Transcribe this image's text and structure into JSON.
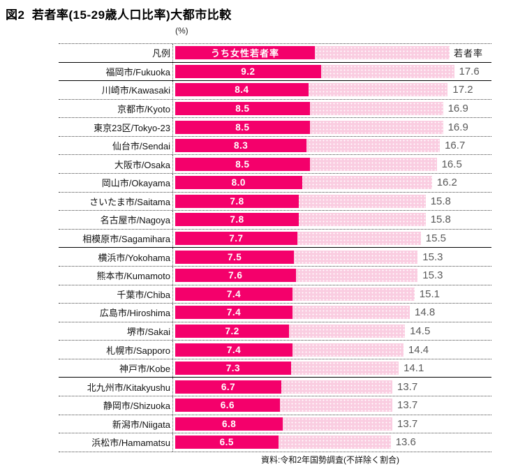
{
  "title": "図2  若者率(15-29歳人口比率)大都市比較",
  "unit_label": "(%)",
  "legend": {
    "row_label": "凡例",
    "female_series_label": "うち女性若者率",
    "total_series_label": "若者率"
  },
  "source": "資料:令和2年国勢調査(不詳除く割合)",
  "colors": {
    "female_bar": "#F4006B",
    "total_bar": "#FACDE1",
    "total_value_text": "#595959",
    "female_value_text": "#FFFFFF"
  },
  "chart_data": {
    "type": "bar",
    "orientation": "horizontal",
    "title": "図2 若者率(15-29歳人口比率)大都市比較",
    "xlabel": "(%)",
    "xlim": [
      0,
      20
    ],
    "grid": false,
    "legend_position": "top-row",
    "categories": [
      "福岡市/Fukuoka",
      "川崎市/Kawasaki",
      "京都市/Kyoto",
      "東京23区/Tokyo-23",
      "仙台市/Sendai",
      "大阪市/Osaka",
      "岡山市/Okayama",
      "さいたま市/Saitama",
      "名古屋市/Nagoya",
      "相模原市/Sagamihara",
      "横浜市/Yokohama",
      "熊本市/Kumamoto",
      "千葉市/Chiba",
      "広島市/Hiroshima",
      "堺市/Sakai",
      "札幌市/Sapporo",
      "神戸市/Kobe",
      "北九州市/Kitakyushu",
      "静岡市/Shizuoka",
      "新潟市/Niigata",
      "浜松市/Hamamatsu"
    ],
    "series": [
      {
        "name": "うち女性若者率",
        "values": [
          9.2,
          8.4,
          8.5,
          8.5,
          8.3,
          8.5,
          8.0,
          7.8,
          7.8,
          7.7,
          7.5,
          7.6,
          7.4,
          7.4,
          7.2,
          7.4,
          7.3,
          6.7,
          6.6,
          6.8,
          6.5
        ]
      },
      {
        "name": "若者率",
        "values": [
          17.6,
          17.2,
          16.9,
          16.9,
          16.7,
          16.5,
          16.2,
          15.8,
          15.8,
          15.5,
          15.3,
          15.3,
          15.1,
          14.8,
          14.5,
          14.4,
          14.1,
          13.7,
          13.7,
          13.7,
          13.6
        ]
      }
    ],
    "rows": [
      {
        "city": "福岡市/Fukuoka",
        "female": "9.2",
        "total": "17.6",
        "divider": "solid"
      },
      {
        "city": "川崎市/Kawasaki",
        "female": "8.4",
        "total": "17.2",
        "divider": "dotted"
      },
      {
        "city": "京都市/Kyoto",
        "female": "8.5",
        "total": "16.9",
        "divider": "dotted"
      },
      {
        "city": "東京23区/Tokyo-23",
        "female": "8.5",
        "total": "16.9",
        "divider": "dotted"
      },
      {
        "city": "仙台市/Sendai",
        "female": "8.3",
        "total": "16.7",
        "divider": "dotted"
      },
      {
        "city": "大阪市/Osaka",
        "female": "8.5",
        "total": "16.5",
        "divider": "dotted"
      },
      {
        "city": "岡山市/Okayama",
        "female": "8.0",
        "total": "16.2",
        "divider": "dotted"
      },
      {
        "city": "さいたま市/Saitama",
        "female": "7.8",
        "total": "15.8",
        "divider": "dotted"
      },
      {
        "city": "名古屋市/Nagoya",
        "female": "7.8",
        "total": "15.8",
        "divider": "dotted"
      },
      {
        "city": "相模原市/Sagamihara",
        "female": "7.7",
        "total": "15.5",
        "divider": "solid"
      },
      {
        "city": "横浜市/Yokohama",
        "female": "7.5",
        "total": "15.3",
        "divider": "dotted"
      },
      {
        "city": "熊本市/Kumamoto",
        "female": "7.6",
        "total": "15.3",
        "divider": "dotted"
      },
      {
        "city": "千葉市/Chiba",
        "female": "7.4",
        "total": "15.1",
        "divider": "dotted"
      },
      {
        "city": "広島市/Hiroshima",
        "female": "7.4",
        "total": "14.8",
        "divider": "dotted"
      },
      {
        "city": "堺市/Sakai",
        "female": "7.2",
        "total": "14.5",
        "divider": "dotted"
      },
      {
        "city": "札幌市/Sapporo",
        "female": "7.4",
        "total": "14.4",
        "divider": "dotted"
      },
      {
        "city": "神戸市/Kobe",
        "female": "7.3",
        "total": "14.1",
        "divider": "solid"
      },
      {
        "city": "北九州市/Kitakyushu",
        "female": "6.7",
        "total": "13.7",
        "divider": "dotted"
      },
      {
        "city": "静岡市/Shizuoka",
        "female": "6.6",
        "total": "13.7",
        "divider": "dotted"
      },
      {
        "city": "新潟市/Niigata",
        "female": "6.8",
        "total": "13.7",
        "divider": "dotted"
      },
      {
        "city": "浜松市/Hamamatsu",
        "female": "6.5",
        "total": "13.6",
        "divider": "dotted"
      }
    ]
  }
}
